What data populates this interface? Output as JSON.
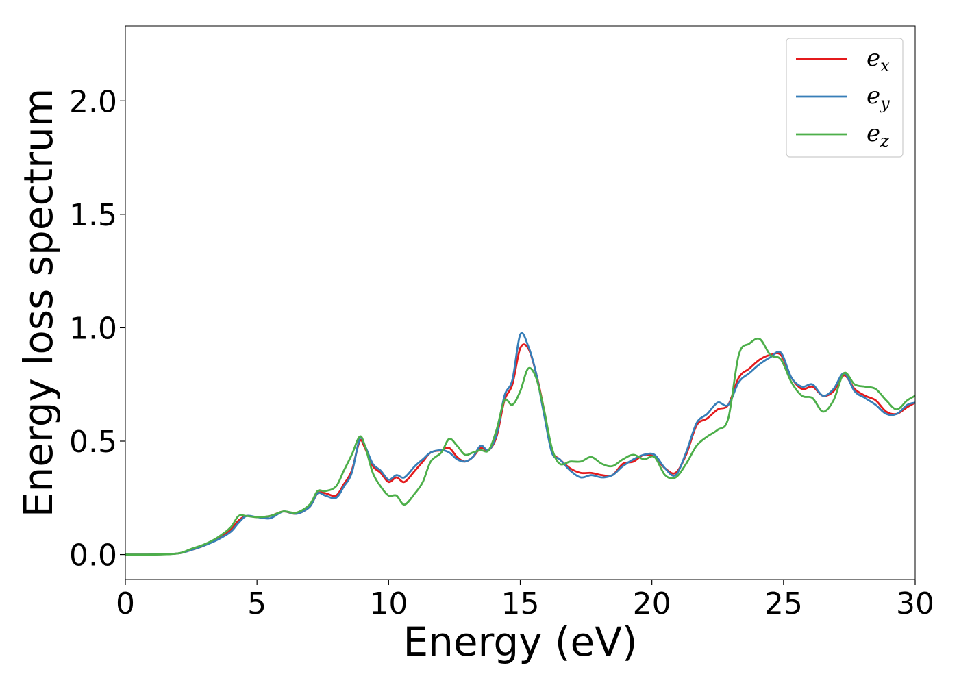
{
  "chart_data": {
    "type": "line",
    "xlabel": "Energy (eV)",
    "ylabel": "Energy loss spectrum",
    "xlim": [
      0,
      30
    ],
    "ylim": [
      -0.11,
      2.33
    ],
    "xticks": [
      0,
      5,
      10,
      15,
      20,
      25,
      30
    ],
    "xtick_labels": [
      "0",
      "5",
      "10",
      "15",
      "20",
      "25",
      "30"
    ],
    "yticks": [
      0.0,
      0.5,
      1.0,
      1.5,
      2.0
    ],
    "ytick_labels": [
      "0.0",
      "0.5",
      "1.0",
      "1.5",
      "2.0"
    ],
    "grid": false,
    "legend_position": "top-right",
    "series": [
      {
        "legend_base": "e",
        "legend_sub": "x",
        "color": "#e41a1c",
        "x": [
          0,
          1,
          2,
          2.5,
          3,
          3.5,
          4,
          4.3,
          4.6,
          5,
          5.5,
          6,
          6.5,
          7,
          7.3,
          7.6,
          8,
          8.3,
          8.6,
          8.9,
          9.1,
          9.4,
          9.7,
          10,
          10.3,
          10.6,
          11,
          11.3,
          11.6,
          12,
          12.3,
          12.6,
          12.9,
          13.2,
          13.5,
          13.8,
          14.1,
          14.4,
          14.7,
          15,
          15.3,
          15.6,
          15.9,
          16.2,
          16.5,
          16.9,
          17.3,
          17.7,
          18.1,
          18.5,
          18.9,
          19.3,
          19.7,
          20.1,
          20.5,
          20.9,
          21.3,
          21.7,
          22.1,
          22.5,
          22.9,
          23.3,
          23.7,
          24.1,
          24.5,
          24.9,
          25.3,
          25.7,
          26.1,
          26.5,
          26.9,
          27.3,
          27.7,
          28.1,
          28.5,
          28.9,
          29.3,
          29.7,
          30
        ],
        "values": [
          0.0,
          0.0,
          0.005,
          0.02,
          0.04,
          0.07,
          0.11,
          0.15,
          0.17,
          0.165,
          0.17,
          0.19,
          0.18,
          0.21,
          0.27,
          0.27,
          0.26,
          0.31,
          0.37,
          0.5,
          0.47,
          0.39,
          0.36,
          0.32,
          0.34,
          0.32,
          0.37,
          0.41,
          0.45,
          0.46,
          0.47,
          0.43,
          0.41,
          0.43,
          0.47,
          0.46,
          0.52,
          0.68,
          0.75,
          0.91,
          0.91,
          0.8,
          0.64,
          0.46,
          0.42,
          0.38,
          0.36,
          0.36,
          0.35,
          0.35,
          0.4,
          0.41,
          0.44,
          0.43,
          0.38,
          0.36,
          0.44,
          0.57,
          0.6,
          0.64,
          0.66,
          0.78,
          0.82,
          0.86,
          0.88,
          0.88,
          0.78,
          0.73,
          0.74,
          0.7,
          0.72,
          0.79,
          0.73,
          0.7,
          0.68,
          0.63,
          0.62,
          0.65,
          0.67
        ]
      },
      {
        "legend_base": "e",
        "legend_sub": "y",
        "color": "#377eb8",
        "x": [
          0,
          1,
          2,
          2.5,
          3,
          3.5,
          4,
          4.3,
          4.6,
          5,
          5.5,
          6,
          6.5,
          7,
          7.3,
          7.6,
          8,
          8.3,
          8.6,
          8.9,
          9.1,
          9.4,
          9.7,
          10,
          10.3,
          10.6,
          11,
          11.3,
          11.6,
          12,
          12.3,
          12.6,
          12.9,
          13.2,
          13.5,
          13.8,
          14.1,
          14.4,
          14.7,
          15,
          15.3,
          15.6,
          15.9,
          16.2,
          16.5,
          16.9,
          17.3,
          17.7,
          18.1,
          18.5,
          18.9,
          19.3,
          19.7,
          20.1,
          20.5,
          20.9,
          21.3,
          21.7,
          22.1,
          22.5,
          22.9,
          23.3,
          23.7,
          24.1,
          24.5,
          24.9,
          25.3,
          25.7,
          26.1,
          26.5,
          26.9,
          27.3,
          27.7,
          28.1,
          28.5,
          28.9,
          29.3,
          29.7,
          30
        ],
        "values": [
          0.0,
          0.0,
          0.005,
          0.02,
          0.04,
          0.065,
          0.1,
          0.14,
          0.17,
          0.165,
          0.16,
          0.19,
          0.18,
          0.21,
          0.27,
          0.26,
          0.25,
          0.3,
          0.36,
          0.51,
          0.48,
          0.4,
          0.37,
          0.33,
          0.35,
          0.34,
          0.39,
          0.42,
          0.45,
          0.46,
          0.45,
          0.42,
          0.41,
          0.43,
          0.48,
          0.46,
          0.53,
          0.7,
          0.77,
          0.97,
          0.92,
          0.8,
          0.62,
          0.45,
          0.42,
          0.37,
          0.34,
          0.35,
          0.34,
          0.35,
          0.39,
          0.42,
          0.44,
          0.44,
          0.38,
          0.35,
          0.45,
          0.58,
          0.62,
          0.67,
          0.66,
          0.76,
          0.8,
          0.84,
          0.87,
          0.89,
          0.78,
          0.74,
          0.75,
          0.7,
          0.73,
          0.8,
          0.72,
          0.69,
          0.66,
          0.62,
          0.62,
          0.66,
          0.67
        ]
      },
      {
        "legend_base": "e",
        "legend_sub": "z",
        "color": "#4daf4a",
        "x": [
          0,
          1,
          2,
          2.5,
          3,
          3.5,
          4,
          4.3,
          4.6,
          5,
          5.5,
          6,
          6.5,
          7,
          7.3,
          7.6,
          8,
          8.3,
          8.6,
          8.9,
          9.1,
          9.4,
          9.7,
          10,
          10.3,
          10.6,
          11,
          11.3,
          11.6,
          12,
          12.3,
          12.6,
          12.9,
          13.2,
          13.5,
          13.8,
          14.1,
          14.4,
          14.7,
          15,
          15.3,
          15.6,
          15.9,
          16.2,
          16.5,
          16.9,
          17.3,
          17.7,
          18.1,
          18.5,
          18.9,
          19.3,
          19.7,
          20.1,
          20.5,
          20.9,
          21.3,
          21.7,
          22.1,
          22.5,
          22.9,
          23.3,
          23.7,
          24.1,
          24.5,
          24.9,
          25.3,
          25.7,
          26.1,
          26.5,
          26.9,
          27.3,
          27.7,
          28.1,
          28.5,
          28.9,
          29.3,
          29.7,
          30
        ],
        "values": [
          0.0,
          0.0,
          0.005,
          0.025,
          0.045,
          0.075,
          0.12,
          0.17,
          0.17,
          0.165,
          0.17,
          0.19,
          0.185,
          0.22,
          0.28,
          0.28,
          0.3,
          0.37,
          0.44,
          0.52,
          0.48,
          0.36,
          0.3,
          0.26,
          0.26,
          0.22,
          0.27,
          0.32,
          0.41,
          0.45,
          0.51,
          0.48,
          0.44,
          0.45,
          0.46,
          0.46,
          0.55,
          0.68,
          0.66,
          0.72,
          0.82,
          0.78,
          0.64,
          0.47,
          0.4,
          0.41,
          0.41,
          0.43,
          0.4,
          0.39,
          0.42,
          0.44,
          0.42,
          0.43,
          0.35,
          0.34,
          0.4,
          0.48,
          0.52,
          0.55,
          0.6,
          0.88,
          0.93,
          0.95,
          0.88,
          0.86,
          0.76,
          0.7,
          0.69,
          0.63,
          0.68,
          0.8,
          0.75,
          0.74,
          0.73,
          0.68,
          0.64,
          0.68,
          0.7
        ]
      }
    ]
  }
}
